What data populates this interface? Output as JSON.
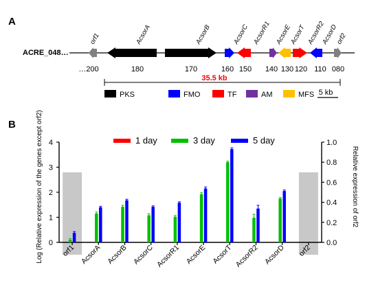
{
  "panelA": {
    "letter": "A",
    "cluster_label": "ACRE_048…",
    "size_label": "35.5 kb",
    "scale_label": "5 kb",
    "genes": [
      {
        "name": "orf1",
        "category": "none",
        "strand": "-"
      },
      {
        "name": "AcsorA",
        "category": "PKS",
        "strand": "-"
      },
      {
        "name": "AcsorB",
        "category": "PKS",
        "strand": "+"
      },
      {
        "name": "AcsorC",
        "category": "FMO",
        "strand": "+"
      },
      {
        "name": "AcsorR1",
        "category": "TF",
        "strand": "-"
      },
      {
        "name": "AcsorE",
        "category": "AM",
        "strand": "+"
      },
      {
        "name": "AcsorT",
        "category": "MFS",
        "strand": "-"
      },
      {
        "name": "AcsorR2",
        "category": "TF",
        "strand": "+"
      },
      {
        "name": "AcsorD",
        "category": "FMO",
        "strand": "-"
      },
      {
        "name": "orf2",
        "category": "none",
        "strand": "+"
      }
    ],
    "coordinates": [
      "…200",
      "180",
      "170",
      "160",
      "150",
      "140",
      "130",
      "120",
      "110",
      "080"
    ],
    "legend": [
      {
        "label": "PKS",
        "color": "#000000"
      },
      {
        "label": "FMO",
        "color": "#0000ff"
      },
      {
        "label": "TF",
        "color": "#ff0000"
      },
      {
        "label": "AM",
        "color": "#7030a0"
      },
      {
        "label": "MFS",
        "color": "#ffc000"
      }
    ],
    "colors": {
      "none": "#808080",
      "size_label": "#ff0000"
    }
  },
  "panelB": {
    "letter": "B"
  },
  "chart_data": {
    "type": "bar",
    "categories": [
      "orf1",
      "AcsorA",
      "AcsorB",
      "AcsorC",
      "AcsorR1",
      "AcsorE",
      "AcsorT",
      "AcsorR2",
      "AcsorD",
      "orf2"
    ],
    "series": [
      {
        "name": "1 day",
        "color": "#ff0000",
        "values": [
          0,
          0,
          0,
          0,
          0,
          0,
          0,
          0,
          0,
          0
        ]
      },
      {
        "name": "3 day",
        "color": "#00c000",
        "values": [
          0.1,
          1.15,
          1.42,
          1.08,
          1.02,
          1.92,
          3.2,
          0.98,
          1.75,
          0
        ]
      },
      {
        "name": "5 day",
        "color": "#0000ff",
        "values": [
          0.38,
          1.4,
          1.68,
          1.42,
          1.58,
          2.15,
          3.72,
          1.35,
          2.05,
          0
        ]
      }
    ],
    "errors": {
      "3 day": [
        0.05,
        0.06,
        0.06,
        0.06,
        0.05,
        0.06,
        0.04,
        0.14,
        0.04,
        0
      ],
      "5 day": [
        0.05,
        0.04,
        0.04,
        0.04,
        0.04,
        0.06,
        0.05,
        0.13,
        0.04,
        0
      ]
    },
    "shaded_categories": [
      "orf1",
      "orf2"
    ],
    "ylabel": "Log (Relative expression of the genes except orf2)",
    "y2label": "Relative expression of orf2",
    "ylim": [
      0,
      4
    ],
    "yticks": [
      "0",
      "1",
      "2",
      "3",
      "4"
    ],
    "y2lim": [
      0,
      1
    ],
    "y2ticks": [
      "0.0",
      "0.2",
      "0.4",
      "0.6",
      "0.8",
      "1.0"
    ],
    "legend_position": "top"
  }
}
